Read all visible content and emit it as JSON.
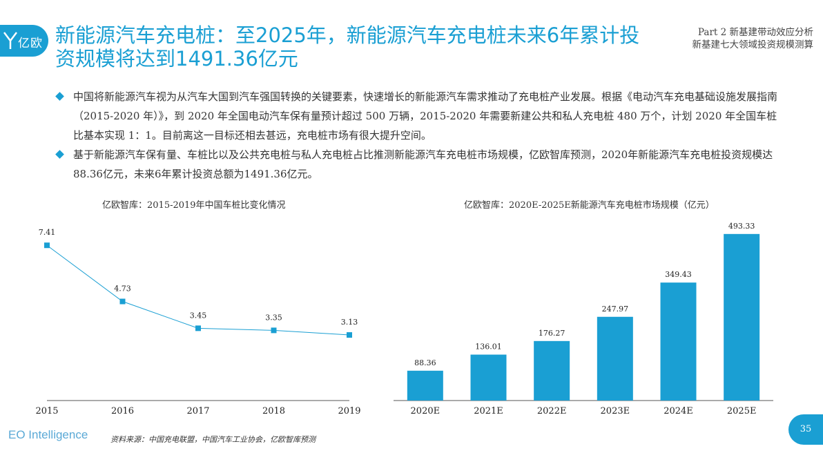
{
  "header": {
    "logo_text": "亿欧",
    "title": "新能源汽车充电桩：至2025年，新能源汽车充电桩未来6年累计投资规模将达到1491.36亿元",
    "part_line1": "Part 2 新基建带动效应分析",
    "part_line2": "新基建七大领域投资规模测算"
  },
  "bullets": [
    "中国将新能源汽车视为从汽车大国到汽车强国转换的关键要素，快速增长的新能源汽车需求推动了充电桩产业发展。根据《电动汽车充电基础设施发展指南（2015-2020 年）》，到 2020 年全国电动汽车保有量预计超过 500 万辆，2015-2020 年需要新建公共和私人充电桩 480 万个，计划 2020 年全国车桩比基本实现 1：1。目前离这一目标还相去甚远，充电桩市场有很大提升空间。",
    "基于新能源汽车保有量、车桩比以及公共充电桩与私人充电桩占比推测新能源汽车充电桩市场规模，亿欧智库预测，2020年新能源汽车充电桩投资规模达88.36亿元，未来6年累计投资总额为1491.36亿元。"
  ],
  "footer": {
    "brand": "EO Intelligence",
    "source": "资料来源：中国充电联盟，中国汽车工业协会，亿欧智库预测",
    "page_number": "35"
  },
  "colors": {
    "accent": "#1a9fd3"
  },
  "chart_data": [
    {
      "type": "line",
      "title": "亿欧智库：2015-2019年中国车桩比变化情况",
      "categories": [
        "2015",
        "2016",
        "2017",
        "2018",
        "2019"
      ],
      "values": [
        7.41,
        4.73,
        3.45,
        3.35,
        3.13
      ],
      "ylim": [
        0,
        8
      ],
      "grid": false,
      "color": "#1a9fd3"
    },
    {
      "type": "bar",
      "title": "亿欧智库：2020E-2025E新能源汽车充电桩市场规模（亿元）",
      "categories": [
        "2020E",
        "2021E",
        "2022E",
        "2023E",
        "2024E",
        "2025E"
      ],
      "values": [
        88.36,
        136.01,
        176.27,
        247.97,
        349.43,
        493.33
      ],
      "ylim": [
        0,
        540
      ],
      "grid": false,
      "color": "#1a9fd3"
    }
  ]
}
